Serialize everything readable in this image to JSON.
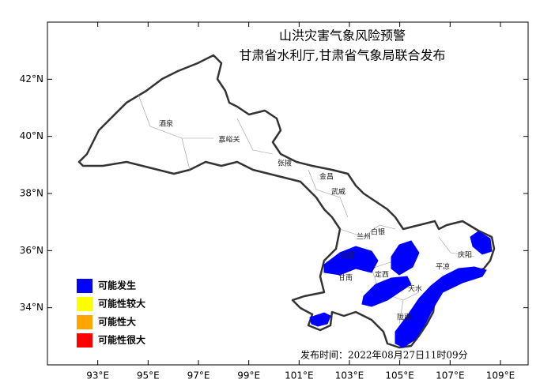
{
  "map": {
    "title": "山洪灾害气象风险预警",
    "subtitle": "甘肃省水利厅,甘肃省气象局联合发布",
    "xlim": [
      91,
      110.1
    ],
    "ylim": [
      32,
      44
    ],
    "xticks": [
      {
        "value": 93,
        "label": "93°E"
      },
      {
        "value": 95,
        "label": "95°E"
      },
      {
        "value": 97,
        "label": "97°E"
      },
      {
        "value": 99,
        "label": "99°E"
      },
      {
        "value": 101,
        "label": "101°E"
      },
      {
        "value": 103,
        "label": "103°E"
      },
      {
        "value": 105,
        "label": "105°E"
      },
      {
        "value": 107,
        "label": "107°E"
      },
      {
        "value": 109,
        "label": "109°E"
      }
    ],
    "yticks": [
      {
        "value": 34,
        "label": "34°N"
      },
      {
        "value": 36,
        "label": "36°N"
      },
      {
        "value": 38,
        "label": "38°N"
      },
      {
        "value": 40,
        "label": "40°N"
      },
      {
        "value": 42,
        "label": "42°N"
      }
    ],
    "cities": [
      "酒泉",
      "嘉峪关",
      "张掖",
      "金昌",
      "武威",
      "兰州",
      "白银",
      "临夏",
      "甘南",
      "定西",
      "天水",
      "陇南",
      "平凉",
      "庆阳"
    ],
    "legend": [
      {
        "label": "可能发生",
        "color": "#0000ff"
      },
      {
        "label": "可能性较大",
        "color": "#ffff00"
      },
      {
        "label": "可能性大",
        "color": "#ffa500"
      },
      {
        "label": "可能性很大",
        "color": "#ff0000"
      }
    ],
    "publish_time": "发布时间：2022年08月27日11时09分"
  }
}
